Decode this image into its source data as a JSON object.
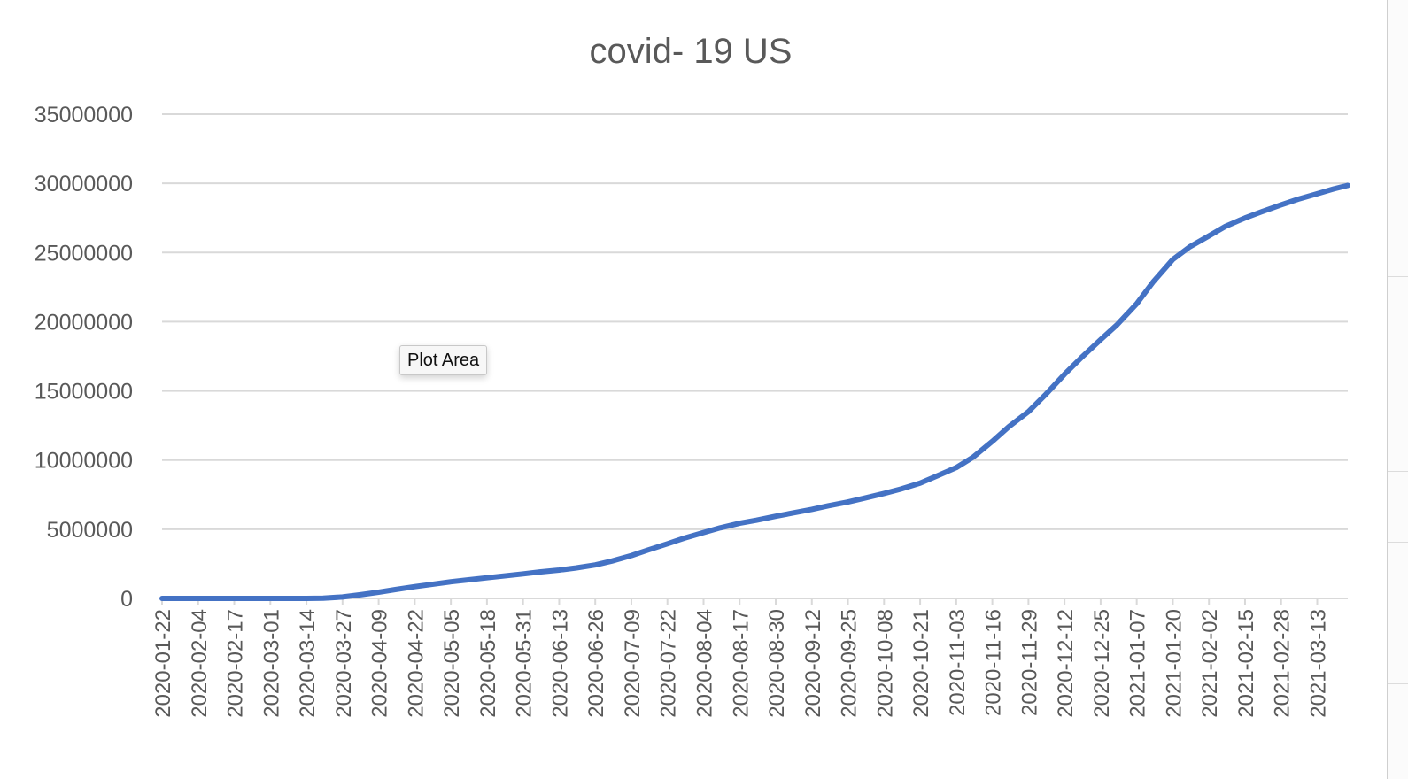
{
  "tooltip": {
    "text": "Plot Area"
  },
  "colors": {
    "series": "#4472c4",
    "grid": "#d9d9d9",
    "text": "#595959"
  },
  "chart_data": {
    "type": "line",
    "title": "covid- 19 US",
    "xlabel": "",
    "ylabel": "",
    "ylim": [
      0,
      35000000
    ],
    "yticks": [
      0,
      5000000,
      10000000,
      15000000,
      20000000,
      25000000,
      30000000,
      35000000
    ],
    "xlim": [
      "2020-01-22",
      "2021-03-24"
    ],
    "xtick_labels": [
      "2020-01-22",
      "2020-02-04",
      "2020-02-17",
      "2020-03-01",
      "2020-03-14",
      "2020-03-27",
      "2020-04-09",
      "2020-04-22",
      "2020-05-05",
      "2020-05-18",
      "2020-05-31",
      "2020-06-13",
      "2020-06-26",
      "2020-07-09",
      "2020-07-22",
      "2020-08-04",
      "2020-08-17",
      "2020-08-30",
      "2020-09-12",
      "2020-09-25",
      "2020-10-08",
      "2020-10-21",
      "2020-11-03",
      "2020-11-16",
      "2020-11-29",
      "2020-12-12",
      "2020-12-25",
      "2021-01-07",
      "2021-01-20",
      "2021-02-02",
      "2021-02-15",
      "2021-02-28",
      "2021-03-13"
    ],
    "grid": true,
    "legend": "none",
    "series": [
      {
        "color": "#4472c4",
        "x": [
          "2020-01-22",
          "2020-02-04",
          "2020-02-17",
          "2020-03-01",
          "2020-03-14",
          "2020-03-20",
          "2020-03-27",
          "2020-04-03",
          "2020-04-09",
          "2020-04-15",
          "2020-04-22",
          "2020-04-28",
          "2020-05-05",
          "2020-05-11",
          "2020-05-18",
          "2020-05-24",
          "2020-05-31",
          "2020-06-06",
          "2020-06-13",
          "2020-06-19",
          "2020-06-26",
          "2020-07-02",
          "2020-07-09",
          "2020-07-15",
          "2020-07-22",
          "2020-07-28",
          "2020-08-04",
          "2020-08-10",
          "2020-08-17",
          "2020-08-23",
          "2020-08-30",
          "2020-09-05",
          "2020-09-12",
          "2020-09-18",
          "2020-09-25",
          "2020-10-01",
          "2020-10-08",
          "2020-10-14",
          "2020-10-21",
          "2020-10-27",
          "2020-11-03",
          "2020-11-09",
          "2020-11-16",
          "2020-11-22",
          "2020-11-29",
          "2020-12-05",
          "2020-12-12",
          "2020-12-18",
          "2020-12-25",
          "2020-12-31",
          "2021-01-07",
          "2021-01-13",
          "2021-01-20",
          "2021-01-26",
          "2021-02-02",
          "2021-02-08",
          "2021-02-15",
          "2021-02-21",
          "2021-02-28",
          "2021-03-06",
          "2021-03-13",
          "2021-03-19",
          "2021-03-24"
        ],
        "y": [
          1,
          12,
          15,
          30,
          2500,
          20000,
          100000,
          280000,
          450000,
          640000,
          850000,
          1010000,
          1200000,
          1340000,
          1490000,
          1620000,
          1770000,
          1910000,
          2050000,
          2200000,
          2420000,
          2700000,
          3100000,
          3500000,
          3950000,
          4350000,
          4760000,
          5100000,
          5430000,
          5650000,
          5940000,
          6170000,
          6440000,
          6700000,
          6970000,
          7250000,
          7590000,
          7900000,
          8330000,
          8850000,
          9450000,
          10200000,
          11350000,
          12420000,
          13500000,
          14700000,
          16200000,
          17400000,
          18700000,
          19800000,
          21300000,
          22900000,
          24500000,
          25400000,
          26200000,
          26900000,
          27500000,
          27950000,
          28450000,
          28850000,
          29250000,
          29600000,
          29850000
        ]
      }
    ]
  }
}
